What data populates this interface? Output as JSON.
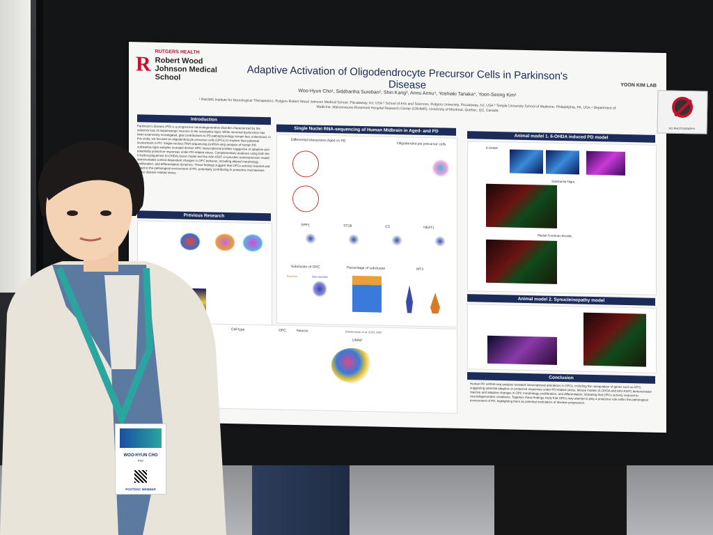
{
  "poster": {
    "institution_top": "RUTGERS HEALTH",
    "institution_name": "Robert Wood Johnson Medical School",
    "logo_letter": "R",
    "title": "Adaptive Activation of Oligodendrocyte Precursor Cells in Parkinson's Disease",
    "authors": "Woo-Hyun Cho¹, Siddhartha Sureban², Shin Kang³, Annu Annu⁴, Yoshiaki Tanaka⁴, Yoon-Seong Kim¹",
    "affiliations": "¹ RWJMS Institute for Neurological Therapeutics, Rutgers-Robert Wood Johnson Medical School, Piscataway, NJ, USA ² School of Arts and Sciences, Rutgers University, Piscataway, NJ, USA ³ Temple University School of Medicine, Philadelphia, PA, USA ⁴ Department of Medicine, Maisonneuve-Rosemont Hospital Research Center (CRHMR), University of Montreal, Quebec, QC, Canada",
    "lab_label": "YOON KIM LAB",
    "sections": {
      "introduction": "Introduction",
      "previous_research": "Previous Research",
      "single_nuclei": "Single Nuclei RNA-sequencing of Human Midbrain in Aged- and PD",
      "animal_model_1": "Animal model 1. 6-OHDA induced PD model",
      "animal_model_2": "Animal model 2. Synucleinopathy model",
      "conclusion": "Conclusion"
    },
    "intro_text": "Parkinson's disease (PD) is a progressive neurodegenerative disorder characterized by the selective loss of dopaminergic neurons in the substantia nigra. While neuronal dysfunction has been extensively investigated, glial contributions to PD pathophysiology remain less understood. In this study, we focused on oligodendrocyte precursor cells (OPCs) to explore their potential involvement in PD. Single-nucleus RNA sequencing (snRNA-seq) analysis of human PD substantia nigra samples revealed distinct OPC transcriptional profiles suggestive of adaptive and potentially protective responses under PD-related stress. Complementary analyses using both the 6-hydroxydopamine (6-OHDA) lesion model and the AAV-A53T α-synuclein overexpression model demonstrated context-dependent changes in OPC behavior, including altered morphology, proliferation, and differentiation dynamics. These findings suggest that OPCs actively respond and adapt to the pathological environment of PD, potentially contributing to protective mechanisms under disease-related stress.",
    "conclusion_text": "Human PD snRNA-seq analysis revealed transcriptional alterations in OPCs, including the upregulation of genes such as MT3, suggesting potential adaptive or protective responses under PD-related stress. Mouse models (6-OHDA and AAV-A53T) demonstrated reactive and adaptive changes in OPC morphology, proliferation, and differentiation, indicating that OPCs actively respond to neurodegenerative conditions. Together, these findings imply that OPCs may attempt to play a protective role within the pathological environment of PD, highlighting them as potential modulators of disease progression.",
    "figure_labels": {
      "diff_interactions": "Differential interactions Aged vs PD",
      "opc_cells": "Oligodendrocyte precursor cells",
      "subcluster": "Subcluster of OPC",
      "percentage_subcluster": "Percentage of subcluster",
      "genes": [
        "SPP1",
        "ST18",
        "C3",
        "NEAT1"
      ],
      "mt3": "MT3",
      "umap": "UMAP",
      "cell_type": "Cell type",
      "opc": "OPC",
      "neuron": "Neuron",
      "citation": "(Martirosyan et al. 2024, MN)",
      "substantia_nigra": "Substantia Nigra",
      "medial_forebrain": "Medial Forebrain Bundle",
      "6ohda": "6-OHDA",
      "reactive": "Reactive",
      "non_reactive": "Non-reactive"
    }
  },
  "sticker": {
    "label": "NO PHOTOGRAPHY"
  },
  "badge": {
    "name": "WOO-HYUN CHO",
    "role": "PhD",
    "member": "POSTDOC MEMBER"
  }
}
